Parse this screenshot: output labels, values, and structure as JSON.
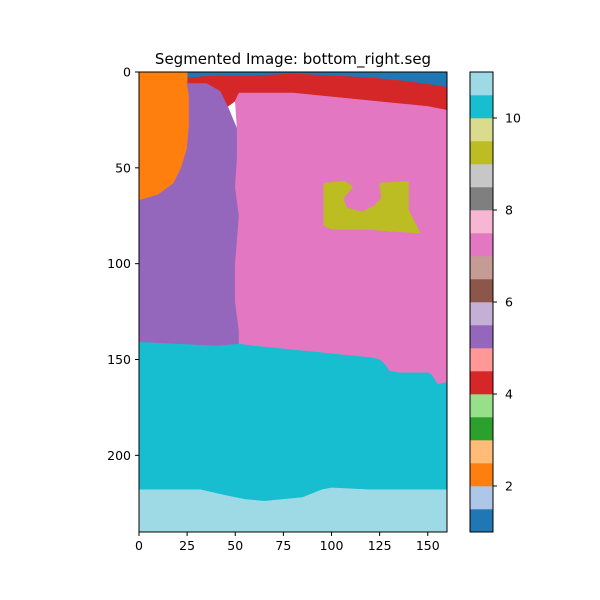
{
  "chart_data": {
    "type": "heatmap",
    "title": "Segmented Image: bottom_right.seg",
    "xlabel": "",
    "ylabel": "",
    "xlim": [
      0,
      160
    ],
    "ylim": [
      240,
      0
    ],
    "x_ticks": [
      0,
      25,
      50,
      75,
      100,
      125,
      150
    ],
    "y_ticks": [
      0,
      50,
      100,
      150,
      200
    ],
    "colormap": "tab20",
    "colorbar": {
      "range": [
        1,
        11
      ],
      "ticks": [
        2,
        4,
        6,
        8,
        10
      ],
      "bands": [
        "#1f77b4",
        "#aec7e8",
        "#ff7f0e",
        "#ffbb78",
        "#2ca02c",
        "#98df8a",
        "#d62728",
        "#ff9896",
        "#9467bd",
        "#c5b0d5",
        "#8c564b",
        "#c49c94",
        "#e377c2",
        "#f7b6d2",
        "#7f7f7f",
        "#c7c7c7",
        "#bcbd22",
        "#dbdb8d",
        "#17becf",
        "#9edae5"
      ]
    },
    "regions": [
      {
        "label": 1,
        "color": "#1f77b4",
        "polygon": [
          [
            25,
            0
          ],
          [
            160,
            0
          ],
          [
            160,
            8
          ],
          [
            150,
            7
          ],
          [
            140,
            5
          ],
          [
            120,
            3
          ],
          [
            100,
            2
          ],
          [
            80,
            1
          ],
          [
            60,
            2
          ],
          [
            40,
            2
          ],
          [
            25,
            3
          ]
        ]
      },
      {
        "label": 4,
        "color": "#d62728",
        "polygon": [
          [
            25,
            3
          ],
          [
            40,
            2
          ],
          [
            60,
            2
          ],
          [
            80,
            1
          ],
          [
            100,
            2
          ],
          [
            120,
            3
          ],
          [
            140,
            5
          ],
          [
            160,
            8
          ],
          [
            160,
            20
          ],
          [
            150,
            18
          ],
          [
            140,
            17
          ],
          [
            120,
            15
          ],
          [
            100,
            13
          ],
          [
            80,
            11
          ],
          [
            65,
            11
          ],
          [
            52,
            11
          ],
          [
            50,
            15
          ],
          [
            46,
            18
          ],
          [
            44,
            16
          ],
          [
            42,
            10
          ],
          [
            35,
            6
          ],
          [
            25,
            6
          ]
        ]
      },
      {
        "label": 2,
        "color": "#ff7f0e",
        "polygon": [
          [
            0,
            0
          ],
          [
            25,
            0
          ],
          [
            25,
            6
          ],
          [
            26,
            12
          ],
          [
            26,
            28
          ],
          [
            25,
            40
          ],
          [
            22,
            50
          ],
          [
            18,
            58
          ],
          [
            10,
            64
          ],
          [
            0,
            67
          ]
        ]
      },
      {
        "label": 5,
        "color": "#9467bd",
        "polygon": [
          [
            0,
            67
          ],
          [
            10,
            64
          ],
          [
            18,
            58
          ],
          [
            22,
            50
          ],
          [
            25,
            40
          ],
          [
            26,
            28
          ],
          [
            26,
            12
          ],
          [
            25,
            6
          ],
          [
            35,
            6
          ],
          [
            42,
            10
          ],
          [
            46,
            18
          ],
          [
            51,
            30
          ],
          [
            51,
            45
          ],
          [
            50,
            60
          ],
          [
            52,
            75
          ],
          [
            51,
            88
          ],
          [
            50,
            100
          ],
          [
            50,
            120
          ],
          [
            52,
            135
          ],
          [
            52,
            142
          ],
          [
            40,
            143
          ],
          [
            20,
            142
          ],
          [
            0,
            141
          ]
        ]
      },
      {
        "label": 7,
        "color": "#e377c2",
        "polygon": [
          [
            52,
            11
          ],
          [
            65,
            11
          ],
          [
            80,
            11
          ],
          [
            100,
            13
          ],
          [
            120,
            15
          ],
          [
            140,
            17
          ],
          [
            150,
            18
          ],
          [
            160,
            20
          ],
          [
            160,
            162
          ],
          [
            155,
            163
          ],
          [
            152,
            158
          ],
          [
            150,
            157
          ],
          [
            135,
            157
          ],
          [
            130,
            156
          ],
          [
            128,
            153
          ],
          [
            125,
            150
          ],
          [
            120,
            149
          ],
          [
            100,
            147
          ],
          [
            80,
            145
          ],
          [
            60,
            143
          ],
          [
            52,
            142
          ],
          [
            52,
            135
          ],
          [
            50,
            120
          ],
          [
            50,
            100
          ],
          [
            51,
            88
          ],
          [
            52,
            75
          ],
          [
            50,
            60
          ],
          [
            51,
            45
          ],
          [
            51,
            30
          ],
          [
            50,
            15
          ]
        ]
      },
      {
        "label": 9,
        "color": "#bcbd22",
        "polygon": [
          [
            96,
            58
          ],
          [
            107,
            57
          ],
          [
            111,
            60
          ],
          [
            106,
            66
          ],
          [
            108,
            71
          ],
          [
            116,
            73
          ],
          [
            122,
            70
          ],
          [
            126,
            66
          ],
          [
            125,
            58
          ],
          [
            140,
            57
          ],
          [
            140,
            72
          ],
          [
            146,
            84
          ],
          [
            130,
            83
          ],
          [
            118,
            82
          ],
          [
            100,
            82
          ],
          [
            96,
            80
          ]
        ]
      },
      {
        "label": 10,
        "color": "#17becf",
        "polygon": [
          [
            0,
            141
          ],
          [
            20,
            142
          ],
          [
            40,
            143
          ],
          [
            52,
            142
          ],
          [
            60,
            143
          ],
          [
            80,
            145
          ],
          [
            100,
            147
          ],
          [
            120,
            149
          ],
          [
            125,
            150
          ],
          [
            128,
            153
          ],
          [
            130,
            156
          ],
          [
            135,
            157
          ],
          [
            150,
            157
          ],
          [
            152,
            158
          ],
          [
            155,
            163
          ],
          [
            160,
            162
          ],
          [
            160,
            218
          ],
          [
            150,
            218
          ],
          [
            130,
            218
          ],
          [
            120,
            218
          ],
          [
            100,
            217
          ],
          [
            95,
            218
          ],
          [
            85,
            222
          ],
          [
            75,
            223
          ],
          [
            65,
            224
          ],
          [
            55,
            223
          ],
          [
            45,
            221
          ],
          [
            32,
            218
          ],
          [
            20,
            218
          ],
          [
            0,
            218
          ]
        ]
      },
      {
        "label": 11,
        "color": "#9edae5",
        "polygon": [
          [
            0,
            218
          ],
          [
            20,
            218
          ],
          [
            32,
            218
          ],
          [
            45,
            221
          ],
          [
            55,
            223
          ],
          [
            65,
            224
          ],
          [
            75,
            223
          ],
          [
            85,
            222
          ],
          [
            95,
            218
          ],
          [
            100,
            217
          ],
          [
            120,
            218
          ],
          [
            130,
            218
          ],
          [
            150,
            218
          ],
          [
            160,
            218
          ],
          [
            160,
            240
          ],
          [
            0,
            240
          ]
        ]
      }
    ]
  }
}
